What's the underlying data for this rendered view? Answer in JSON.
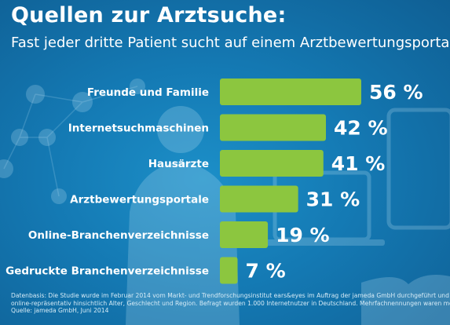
{
  "header": {
    "title": "Quellen zur Arztsuche:",
    "subtitle": "Fast jeder dritte Patient sucht auf einem Arztbewertungsportal"
  },
  "chart_data": {
    "type": "bar",
    "orientation": "horizontal",
    "categories": [
      "Freunde und Familie",
      "Internetsuchmaschinen",
      "Hausärzte",
      "Arztbewertungsportale",
      "Online-Branchenverzeichnisse",
      "Gedruckte Branchenverzeichnisse"
    ],
    "values": [
      56,
      42,
      41,
      31,
      19,
      7
    ],
    "value_labels": [
      "56 %",
      "42 %",
      "41 %",
      "31 %",
      "19 %",
      "7 %"
    ],
    "unit": "%",
    "xlim": [
      0,
      60
    ],
    "grid": false,
    "legend": "none",
    "bar_color": "#8cc63f"
  },
  "footnote": {
    "lines": [
      "Datenbasis: Die Studie wurde im Februar 2014 vom Markt- und Trendforschungsinstitut ears&eyes im Auftrag der jameda GmbH durchgeführt und ist",
      "online-repräsentativ hinsichtlich Alter, Geschlecht und Region. Befragt wurden 1.000 Internetnutzer in Deutschland. Mehrfachnennungen waren möglich.",
      "Quelle: jameda GmbH, Juni 2014"
    ]
  },
  "colors": {
    "background": "#1479b3",
    "bar": "#8cc63f",
    "text": "#ffffff"
  },
  "icons": [
    "person-network-icon",
    "doctor-silhouette-icon",
    "laptop-icon",
    "tablet-icon",
    "book-icon"
  ]
}
